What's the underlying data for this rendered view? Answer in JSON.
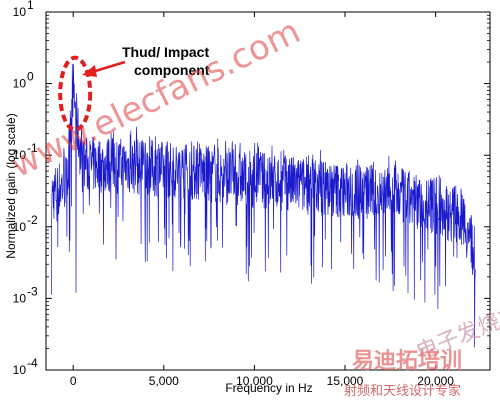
{
  "chart_data": {
    "type": "line",
    "xlabel": "Frequency in Hz",
    "ylabel": "Normalized gain (log scale)",
    "xlim": [
      -1500,
      23000
    ],
    "ylim_log10": [
      -4,
      1
    ],
    "y_scale": "log",
    "grid": false,
    "legend": "none",
    "x_ticks": [
      {
        "value": 0,
        "label": "0"
      },
      {
        "value": 5000,
        "label": "5,000"
      },
      {
        "value": 10000,
        "label": "10,000"
      },
      {
        "value": 15000,
        "label": "15,000"
      },
      {
        "value": 20000,
        "label": "20,000"
      }
    ],
    "y_ticks": [
      {
        "exp": 1,
        "label_base": "10",
        "label_exp": "1"
      },
      {
        "exp": 0,
        "label_base": "10",
        "label_exp": "0"
      },
      {
        "exp": -1,
        "label_base": "10",
        "label_exp": "-1"
      },
      {
        "exp": -2,
        "label_base": "10",
        "label_exp": "-2"
      },
      {
        "exp": -3,
        "label_base": "10",
        "label_exp": "-3"
      },
      {
        "exp": -4,
        "label_base": "10",
        "label_exp": "-4"
      }
    ],
    "series": [
      {
        "color": "#1a1acc",
        "envelope": [
          {
            "x": -1200,
            "y": 0.03
          },
          {
            "x": -300,
            "y": 0.05
          },
          {
            "x": 0,
            "y": 1.0
          },
          {
            "x": 200,
            "y": 0.3
          },
          {
            "x": 500,
            "y": 0.08
          },
          {
            "x": 2000,
            "y": 0.08
          },
          {
            "x": 5000,
            "y": 0.07
          },
          {
            "x": 10000,
            "y": 0.05
          },
          {
            "x": 15000,
            "y": 0.035
          },
          {
            "x": 18000,
            "y": 0.03
          },
          {
            "x": 20000,
            "y": 0.02
          },
          {
            "x": 21500,
            "y": 0.015
          },
          {
            "x": 22200,
            "y": 0.004
          }
        ],
        "peaks": [
          {
            "x": 0,
            "y": 1.0
          },
          {
            "x": 3500,
            "y": 0.25
          },
          {
            "x": 21500,
            "y": 0.01
          }
        ]
      }
    ],
    "annotations": [
      {
        "text_line1": "Thud/ Impact",
        "text_line2": "component",
        "target_x": 0,
        "target_y": 1.0,
        "color": "#e02020"
      }
    ]
  },
  "watermarks": {
    "site": "www.elecfans.com",
    "brand": "电子发烧友",
    "logo": "易迪拓培训",
    "tagline": "射频和天线设计专家"
  }
}
